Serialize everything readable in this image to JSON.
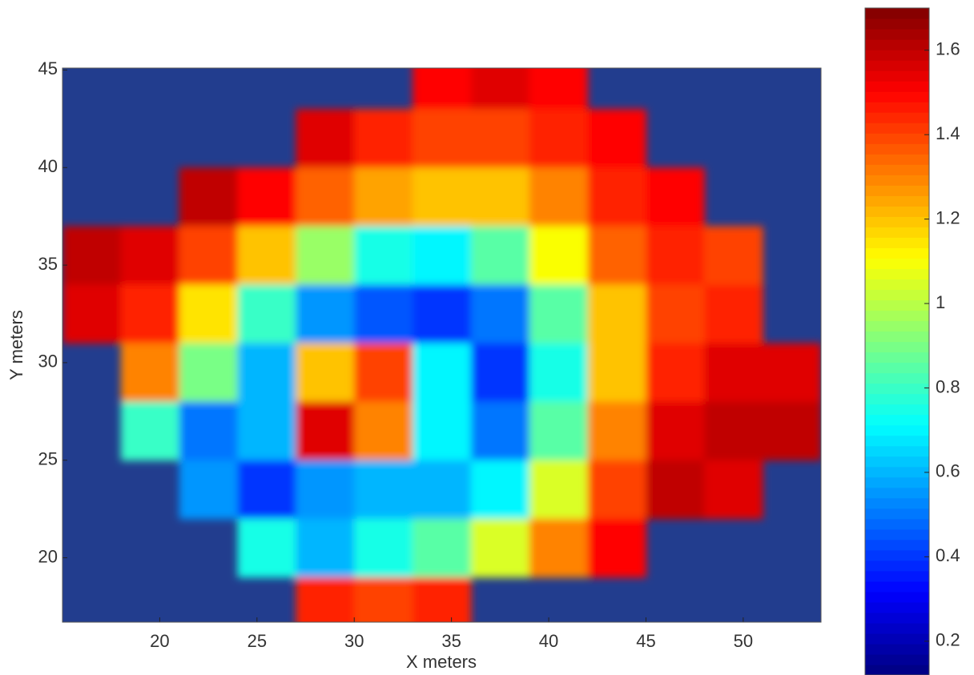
{
  "chart_data": {
    "type": "heatmap",
    "xlabel": "X meters",
    "ylabel": "Y meters",
    "x": [
      16.5,
      19.5,
      22.5,
      25.5,
      28.5,
      31.5,
      34.5,
      37.5,
      40.5,
      43.5,
      46.5,
      49.5,
      52.5
    ],
    "y": [
      44.5,
      41.5,
      38.5,
      35.5,
      32.5,
      29.5,
      26.5,
      23.5,
      20.5,
      17.5
    ],
    "z": [
      [
        null,
        null,
        null,
        null,
        null,
        null,
        1.5,
        1.55,
        1.5,
        null,
        null,
        null,
        null
      ],
      [
        null,
        null,
        null,
        null,
        1.55,
        1.45,
        1.4,
        1.4,
        1.45,
        1.5,
        null,
        null,
        null
      ],
      [
        null,
        null,
        1.6,
        1.5,
        1.35,
        1.25,
        1.2,
        1.2,
        1.3,
        1.45,
        1.5,
        null,
        null
      ],
      [
        1.6,
        1.55,
        1.4,
        1.2,
        0.95,
        0.75,
        0.7,
        0.85,
        1.1,
        1.35,
        1.45,
        1.4,
        null
      ],
      [
        1.55,
        1.45,
        1.15,
        0.8,
        0.55,
        0.45,
        0.4,
        0.5,
        0.85,
        1.2,
        1.4,
        1.45,
        null
      ],
      [
        null,
        1.3,
        0.9,
        0.6,
        1.2,
        1.4,
        0.7,
        0.4,
        0.75,
        1.2,
        1.45,
        1.55,
        1.55
      ],
      [
        null,
        0.8,
        0.5,
        0.6,
        1.55,
        1.3,
        0.7,
        0.5,
        0.85,
        1.3,
        1.55,
        1.6,
        1.6
      ],
      [
        null,
        null,
        0.55,
        0.4,
        0.55,
        0.6,
        0.6,
        0.7,
        1.05,
        1.4,
        1.6,
        1.55,
        null
      ],
      [
        null,
        null,
        null,
        0.75,
        0.6,
        0.75,
        0.85,
        1.05,
        1.3,
        1.5,
        null,
        null,
        null
      ],
      [
        null,
        null,
        null,
        null,
        1.45,
        1.4,
        1.45,
        null,
        null,
        null,
        null,
        null,
        null
      ]
    ],
    "xlim": [
      15,
      54
    ],
    "ylim": [
      16.7,
      45.1
    ],
    "xticks": [
      20,
      25,
      30,
      35,
      40,
      45,
      50
    ],
    "yticks": [
      20,
      25,
      30,
      35,
      40,
      45
    ],
    "colormap": "jet",
    "nan_color": "#223d8e",
    "clim": [
      0.12,
      1.7
    ],
    "cticks": [
      0.2,
      0.4,
      0.6,
      0.8,
      1,
      1.2,
      1.4,
      1.6
    ]
  }
}
